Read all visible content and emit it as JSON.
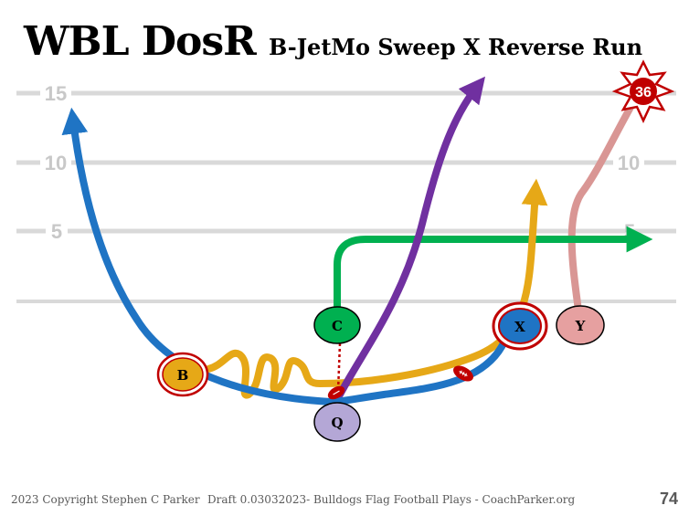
{
  "title": {
    "main": "WBL DosR",
    "sub": "B-JetMo Sweep X Reverse Run"
  },
  "yard_markers": {
    "left": [
      "15",
      "10",
      "5"
    ],
    "right_10": "10",
    "right_5": "5"
  },
  "badge": {
    "text": "36",
    "color": "#c00000"
  },
  "players": {
    "C": {
      "label": "C",
      "color": "#00b050"
    },
    "Q": {
      "label": "Q",
      "color": "#b4a7d6"
    },
    "B": {
      "label": "B",
      "color": "#e6a817"
    },
    "X": {
      "label": "X",
      "color": "#1f74c4"
    },
    "Y": {
      "label": "Y",
      "color": "#e6a0a0"
    }
  },
  "routes": {
    "B": {
      "color": "#e6a817",
      "icon": "jet-motion-squiggle"
    },
    "Q": {
      "color": "#7030a0"
    },
    "C": {
      "color": "#00b050"
    },
    "X": {
      "color": "#1f74c4"
    },
    "Y": {
      "color": "#d99694"
    }
  },
  "footer": {
    "copyright": "2023 Copyright Stephen C Parker",
    "draft": "Draft 0.03032023- Bulldogs Flag Football Plays - CoachParker.org",
    "page": "74"
  }
}
